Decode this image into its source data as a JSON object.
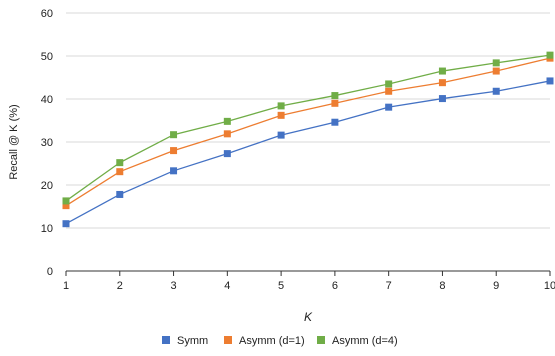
{
  "chart_data": {
    "type": "line",
    "title": "",
    "xlabel": "K",
    "ylabel": "Recall @ K (%)",
    "x": [
      1,
      2,
      3,
      4,
      5,
      6,
      7,
      8,
      9,
      10
    ],
    "ylim": [
      0,
      60
    ],
    "yticks": [
      0,
      10,
      20,
      30,
      40,
      50,
      60
    ],
    "grid": true,
    "legend_position": "bottom",
    "series": [
      {
        "name": "Symm",
        "color": "#4472c4",
        "values": [
          11.0,
          17.8,
          23.3,
          27.3,
          31.6,
          34.6,
          38.1,
          40.1,
          41.8,
          44.2
        ]
      },
      {
        "name": "Asymm (d=1)",
        "color": "#ed7d31",
        "values": [
          15.2,
          23.1,
          28.0,
          31.9,
          36.2,
          39.0,
          41.8,
          43.8,
          46.5,
          49.5
        ]
      },
      {
        "name": "Asymm (d=4)",
        "color": "#70ad47",
        "values": [
          16.3,
          25.2,
          31.7,
          34.8,
          38.4,
          40.8,
          43.5,
          46.5,
          48.4,
          50.2
        ]
      }
    ]
  }
}
